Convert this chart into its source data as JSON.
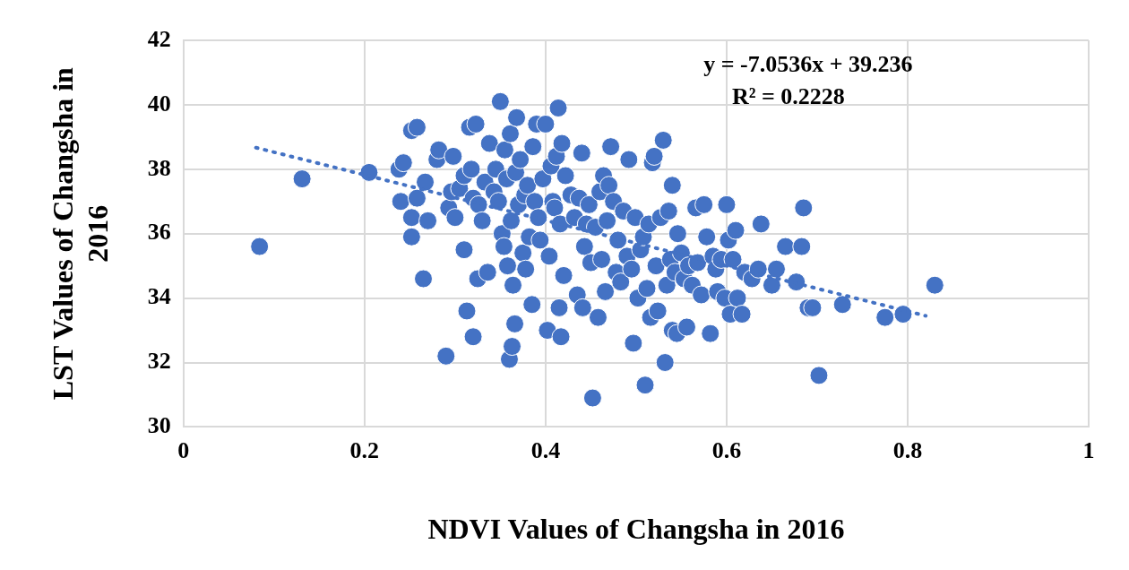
{
  "chart_data": {
    "type": "scatter",
    "xlabel": "NDVI Values of Changsha in 2016",
    "ylabel": "LST Values of Changsha in 2016",
    "xlim": [
      0,
      1
    ],
    "xticks": [
      0,
      0.2,
      0.4,
      0.6,
      0.8,
      1
    ],
    "ylim": [
      30,
      42
    ],
    "yticks": [
      30,
      32,
      34,
      36,
      38,
      40,
      42
    ],
    "grid": true,
    "legend": false,
    "marker": "circle",
    "annotations": [
      "y = -7.0536x + 39.236",
      "R² = 0.2228"
    ],
    "series": [
      {
        "color": "#4472c4",
        "x": [
          0.084,
          0.131,
          0.205,
          0.238,
          0.243,
          0.24,
          0.252,
          0.258,
          0.252,
          0.252,
          0.258,
          0.265,
          0.267,
          0.27,
          0.28,
          0.282,
          0.29,
          0.293,
          0.296,
          0.298,
          0.3,
          0.305,
          0.31,
          0.31,
          0.313,
          0.316,
          0.318,
          0.32,
          0.32,
          0.323,
          0.325,
          0.326,
          0.33,
          0.333,
          0.336,
          0.338,
          0.343,
          0.345,
          0.348,
          0.35,
          0.352,
          0.354,
          0.355,
          0.357,
          0.358,
          0.36,
          0.361,
          0.362,
          0.363,
          0.364,
          0.366,
          0.367,
          0.368,
          0.37,
          0.372,
          0.375,
          0.377,
          0.378,
          0.38,
          0.382,
          0.385,
          0.386,
          0.388,
          0.39,
          0.392,
          0.394,
          0.397,
          0.4,
          0.402,
          0.404,
          0.406,
          0.408,
          0.41,
          0.412,
          0.414,
          0.415,
          0.416,
          0.417,
          0.418,
          0.42,
          0.422,
          0.428,
          0.432,
          0.435,
          0.437,
          0.44,
          0.441,
          0.443,
          0.445,
          0.448,
          0.45,
          0.452,
          0.455,
          0.458,
          0.46,
          0.462,
          0.464,
          0.466,
          0.468,
          0.47,
          0.472,
          0.475,
          0.478,
          0.48,
          0.483,
          0.486,
          0.49,
          0.492,
          0.495,
          0.497,
          0.499,
          0.502,
          0.505,
          0.508,
          0.51,
          0.512,
          0.514,
          0.516,
          0.518,
          0.52,
          0.522,
          0.524,
          0.527,
          0.53,
          0.532,
          0.534,
          0.536,
          0.538,
          0.54,
          0.54,
          0.543,
          0.545,
          0.546,
          0.55,
          0.553,
          0.556,
          0.558,
          0.562,
          0.566,
          0.568,
          0.572,
          0.575,
          0.578,
          0.582,
          0.585,
          0.588,
          0.59,
          0.594,
          0.598,
          0.6,
          0.602,
          0.604,
          0.607,
          0.61,
          0.612,
          0.617,
          0.62,
          0.628,
          0.635,
          0.638,
          0.65,
          0.655,
          0.665,
          0.677,
          0.683,
          0.685,
          0.69,
          0.695,
          0.702,
          0.728,
          0.775,
          0.795,
          0.83
        ],
        "values": [
          35.6,
          37.7,
          37.9,
          38.0,
          38.2,
          37.0,
          39.2,
          39.3,
          36.5,
          35.9,
          37.1,
          34.6,
          37.6,
          36.4,
          38.3,
          38.6,
          32.2,
          36.8,
          37.3,
          38.4,
          36.5,
          37.4,
          35.5,
          37.8,
          33.6,
          39.3,
          38.0,
          37.1,
          32.8,
          39.4,
          34.6,
          36.9,
          36.4,
          37.6,
          34.8,
          38.8,
          37.3,
          38.0,
          37.0,
          40.1,
          36.0,
          35.6,
          38.6,
          37.7,
          35.0,
          32.1,
          39.1,
          36.4,
          32.5,
          34.4,
          33.2,
          37.9,
          39.6,
          36.9,
          38.3,
          35.4,
          37.2,
          34.9,
          37.5,
          35.9,
          33.8,
          38.7,
          37.0,
          39.4,
          36.5,
          35.8,
          37.7,
          39.4,
          33.0,
          35.3,
          38.1,
          37.0,
          36.8,
          38.4,
          39.9,
          33.7,
          36.3,
          32.8,
          38.8,
          34.7,
          37.8,
          37.2,
          36.5,
          34.1,
          37.1,
          38.5,
          33.7,
          35.6,
          36.3,
          36.9,
          35.1,
          30.9,
          36.2,
          33.4,
          37.3,
          35.2,
          37.8,
          34.2,
          36.4,
          37.5,
          38.7,
          37.0,
          34.8,
          35.8,
          34.5,
          36.7,
          35.3,
          38.3,
          34.9,
          32.6,
          36.5,
          34.0,
          35.5,
          35.9,
          31.3,
          34.3,
          36.3,
          33.4,
          38.2,
          38.4,
          35.0,
          33.6,
          36.5,
          38.9,
          32.0,
          34.4,
          36.7,
          35.2,
          37.5,
          33.0,
          34.8,
          32.9,
          36.0,
          35.4,
          34.6,
          33.1,
          35.0,
          34.4,
          36.8,
          35.1,
          34.1,
          36.9,
          35.9,
          32.9,
          35.3,
          34.9,
          34.2,
          35.2,
          34.0,
          36.9,
          35.8,
          33.5,
          35.2,
          36.1,
          34.0,
          33.5,
          34.8,
          34.6,
          34.9,
          36.3,
          34.4,
          34.9,
          35.6,
          34.5,
          35.6,
          36.8,
          33.7,
          33.7,
          31.6,
          33.8,
          33.4,
          33.5,
          34.4
        ]
      },
      {
        "type": "line",
        "color": "#4472c4",
        "line_style": "dotted",
        "marker": "none",
        "x": [
          0.08,
          0.82
        ],
        "values": [
          38.67,
          33.45
        ]
      }
    ]
  }
}
